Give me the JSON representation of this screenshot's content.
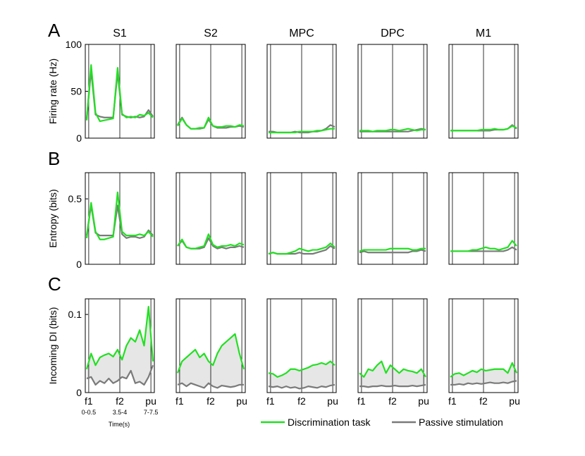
{
  "figure": {
    "panel_letters": [
      "A",
      "B",
      "C"
    ],
    "areas": [
      "S1",
      "S2",
      "MPC",
      "DPC",
      "M1"
    ],
    "xticks_short": [
      "f1",
      "f2",
      "pu"
    ],
    "xticks_windows": [
      "0-0.5",
      "3.5-4",
      "7-7.5"
    ],
    "xlabel": "Time(s)",
    "legend": {
      "discrimination_label": "Discrimination task",
      "passive_label": "Passive stimulation"
    },
    "colors": {
      "discrimination": "#22e022",
      "passive": "#7a7a7a",
      "shade": "#e6e6e6",
      "frame": "#000000"
    }
  },
  "chart_data": [
    {
      "panel": "A",
      "type": "line",
      "ylabel": "Firing rate (Hz)",
      "ylim": [
        0,
        100
      ],
      "yticks": [
        "0",
        "50",
        "100"
      ],
      "series": [
        {
          "name": "Discrimination task",
          "values": {
            "S1": [
              19,
              78,
              27,
              18,
              19,
              20,
              21,
              75,
              26,
              22,
              23,
              22,
              25,
              24,
              27,
              22
            ],
            "S2": [
              13,
              21,
              14,
              10,
              10,
              11,
              11,
              22,
              13,
              12,
              12,
              13,
              13,
              12,
              14,
              13
            ],
            "MPC": [
              6,
              6,
              6,
              6,
              6,
              6,
              6,
              7,
              7,
              7,
              7,
              8,
              8,
              9,
              10,
              10
            ],
            "DPC": [
              8,
              8,
              8,
              7,
              8,
              8,
              8,
              9,
              9,
              8,
              9,
              10,
              9,
              8,
              9,
              9
            ],
            "M1": [
              8,
              8,
              8,
              8,
              8,
              8,
              8,
              9,
              9,
              9,
              10,
              9,
              9,
              10,
              13,
              11
            ]
          }
        },
        {
          "name": "Passive stimulation",
          "values": {
            "S1": [
              21,
              72,
              25,
              23,
              22,
              22,
              22,
              70,
              25,
              23,
              22,
              23,
              22,
              23,
              30,
              23
            ],
            "S2": [
              14,
              22,
              14,
              10,
              10,
              10,
              11,
              20,
              13,
              11,
              11,
              11,
              12,
              12,
              13,
              12
            ],
            "MPC": [
              7,
              7,
              6,
              6,
              6,
              6,
              7,
              6,
              6,
              6,
              7,
              7,
              8,
              10,
              14,
              12
            ],
            "DPC": [
              7,
              7,
              7,
              7,
              7,
              7,
              7,
              7,
              7,
              7,
              7,
              7,
              8,
              9,
              10,
              9
            ],
            "M1": [
              8,
              8,
              8,
              8,
              8,
              8,
              8,
              8,
              8,
              8,
              9,
              9,
              9,
              10,
              14,
              10
            ]
          }
        }
      ]
    },
    {
      "panel": "B",
      "type": "line",
      "ylabel": "Entropy (bits)",
      "ylim": [
        0,
        0.7
      ],
      "yticks": [
        "0",
        "0.5"
      ],
      "series": [
        {
          "name": "Discrimination task",
          "values": {
            "S1": [
              0.2,
              0.47,
              0.25,
              0.19,
              0.19,
              0.2,
              0.21,
              0.55,
              0.25,
              0.22,
              0.22,
              0.22,
              0.23,
              0.22,
              0.25,
              0.21
            ],
            "S2": [
              0.14,
              0.19,
              0.13,
              0.12,
              0.12,
              0.13,
              0.14,
              0.23,
              0.15,
              0.13,
              0.14,
              0.14,
              0.15,
              0.14,
              0.16,
              0.15
            ],
            "MPC": [
              0.08,
              0.09,
              0.08,
              0.08,
              0.08,
              0.09,
              0.1,
              0.12,
              0.11,
              0.1,
              0.11,
              0.11,
              0.12,
              0.13,
              0.16,
              0.13
            ],
            "DPC": [
              0.1,
              0.11,
              0.11,
              0.11,
              0.11,
              0.11,
              0.11,
              0.12,
              0.12,
              0.12,
              0.12,
              0.12,
              0.11,
              0.11,
              0.12,
              0.12
            ],
            "M1": [
              0.1,
              0.1,
              0.1,
              0.1,
              0.1,
              0.11,
              0.11,
              0.12,
              0.13,
              0.12,
              0.12,
              0.11,
              0.12,
              0.13,
              0.18,
              0.14
            ]
          }
        },
        {
          "name": "Passive stimulation",
          "values": {
            "S1": [
              0.22,
              0.45,
              0.24,
              0.22,
              0.22,
              0.22,
              0.22,
              0.45,
              0.23,
              0.2,
              0.21,
              0.21,
              0.2,
              0.21,
              0.26,
              0.22
            ],
            "S2": [
              0.14,
              0.18,
              0.13,
              0.12,
              0.12,
              0.12,
              0.13,
              0.2,
              0.14,
              0.12,
              0.13,
              0.12,
              0.13,
              0.13,
              0.14,
              0.13
            ],
            "MPC": [
              0.08,
              0.09,
              0.08,
              0.08,
              0.08,
              0.08,
              0.08,
              0.09,
              0.08,
              0.08,
              0.08,
              0.09,
              0.1,
              0.11,
              0.14,
              0.12
            ],
            "DPC": [
              0.09,
              0.1,
              0.09,
              0.09,
              0.09,
              0.09,
              0.09,
              0.09,
              0.09,
              0.09,
              0.09,
              0.09,
              0.1,
              0.1,
              0.11,
              0.1
            ],
            "M1": [
              0.1,
              0.1,
              0.1,
              0.1,
              0.1,
              0.1,
              0.1,
              0.1,
              0.1,
              0.1,
              0.1,
              0.1,
              0.1,
              0.11,
              0.13,
              0.11
            ]
          }
        }
      ]
    },
    {
      "panel": "C",
      "type": "area",
      "ylabel": "Incoming DI (bits)",
      "ylim": [
        0,
        0.12
      ],
      "yticks": [
        "0",
        "0.1"
      ],
      "series": [
        {
          "name": "Discrimination task",
          "values": {
            "S1": [
              0.03,
              0.05,
              0.035,
              0.045,
              0.048,
              0.05,
              0.046,
              0.055,
              0.042,
              0.06,
              0.07,
              0.065,
              0.08,
              0.06,
              0.11,
              0.04
            ],
            "S2": [
              0.025,
              0.04,
              0.045,
              0.05,
              0.055,
              0.045,
              0.05,
              0.04,
              0.035,
              0.05,
              0.06,
              0.065,
              0.07,
              0.075,
              0.05,
              0.03
            ],
            "MPC": [
              0.025,
              0.024,
              0.02,
              0.022,
              0.025,
              0.03,
              0.03,
              0.028,
              0.03,
              0.032,
              0.035,
              0.036,
              0.038,
              0.036,
              0.04,
              0.035
            ],
            "DPC": [
              0.025,
              0.02,
              0.03,
              0.028,
              0.035,
              0.04,
              0.025,
              0.035,
              0.03,
              0.025,
              0.03,
              0.028,
              0.027,
              0.025,
              0.03,
              0.02
            ],
            "M1": [
              0.02,
              0.024,
              0.025,
              0.022,
              0.025,
              0.028,
              0.026,
              0.03,
              0.028,
              0.029,
              0.03,
              0.03,
              0.03,
              0.025,
              0.038,
              0.025
            ]
          }
        },
        {
          "name": "Passive stimulation",
          "values": {
            "S1": [
              0.018,
              0.02,
              0.01,
              0.015,
              0.012,
              0.018,
              0.012,
              0.015,
              0.02,
              0.018,
              0.028,
              0.012,
              0.014,
              0.01,
              0.02,
              0.035
            ],
            "S2": [
              0.01,
              0.012,
              0.008,
              0.012,
              0.01,
              0.008,
              0.006,
              0.012,
              0.008,
              0.006,
              0.009,
              0.008,
              0.007,
              0.008,
              0.01,
              0.01
            ],
            "MPC": [
              0.008,
              0.007,
              0.008,
              0.006,
              0.008,
              0.006,
              0.007,
              0.005,
              0.006,
              0.008,
              0.007,
              0.006,
              0.008,
              0.007,
              0.009,
              0.01
            ],
            "DPC": [
              0.008,
              0.008,
              0.007,
              0.008,
              0.008,
              0.009,
              0.008,
              0.008,
              0.009,
              0.008,
              0.008,
              0.008,
              0.009,
              0.008,
              0.009,
              0.01
            ],
            "M1": [
              0.01,
              0.01,
              0.011,
              0.01,
              0.012,
              0.011,
              0.012,
              0.011,
              0.012,
              0.013,
              0.012,
              0.012,
              0.013,
              0.012,
              0.014,
              0.015
            ]
          }
        }
      ]
    }
  ]
}
